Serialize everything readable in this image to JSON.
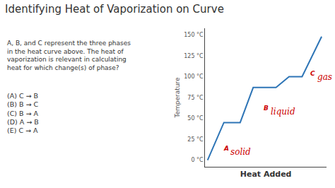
{
  "chart_data": {
    "type": "line",
    "title": "Identifying Heat of Vaporization on Curve",
    "text_block": [
      "A, B, and C represent the three phases",
      "in the heat curve above. The heat of",
      "vaporization is relevant in calculating",
      "heat for which change(s) of phase?"
    ],
    "options": [
      "(A) C → B",
      "(B) B → C",
      "(C) B → A",
      "(D) A → B",
      "(E) C → A"
    ],
    "x": [
      0,
      1.0,
      2.0,
      2.8,
      4.2,
      5.0,
      5.8,
      7.0
    ],
    "values": [
      0,
      45,
      45,
      87,
      87,
      100,
      100,
      148
    ],
    "color": "#2e75b6",
    "xlabel": "Heat Added",
    "ylabel": "Temperature",
    "xlim": [
      -0.15,
      7.3
    ],
    "ylim": [
      -8,
      158
    ],
    "yticks": [
      {
        "value": 0,
        "label": "0 °C"
      },
      {
        "value": 25,
        "label": "25 °C"
      },
      {
        "value": 50,
        "label": "50 °C"
      },
      {
        "value": 75,
        "label": "75 °C"
      },
      {
        "value": 100,
        "label": "100 °C"
      },
      {
        "value": 125,
        "label": "125 °C"
      },
      {
        "value": 150,
        "label": "150 °C"
      }
    ],
    "tick_labels": "y",
    "grid": false,
    "annotations": [
      {
        "label": "A",
        "text": "solid",
        "x": 0.55,
        "y": 20,
        "color": "#cc0000"
      },
      {
        "label": "B",
        "text": "liquid",
        "x": 3.0,
        "y": 68,
        "color": "#cc0000"
      },
      {
        "label": "C",
        "text": "gas",
        "x": 5.85,
        "y": 110,
        "color": "#cc0000"
      }
    ]
  }
}
